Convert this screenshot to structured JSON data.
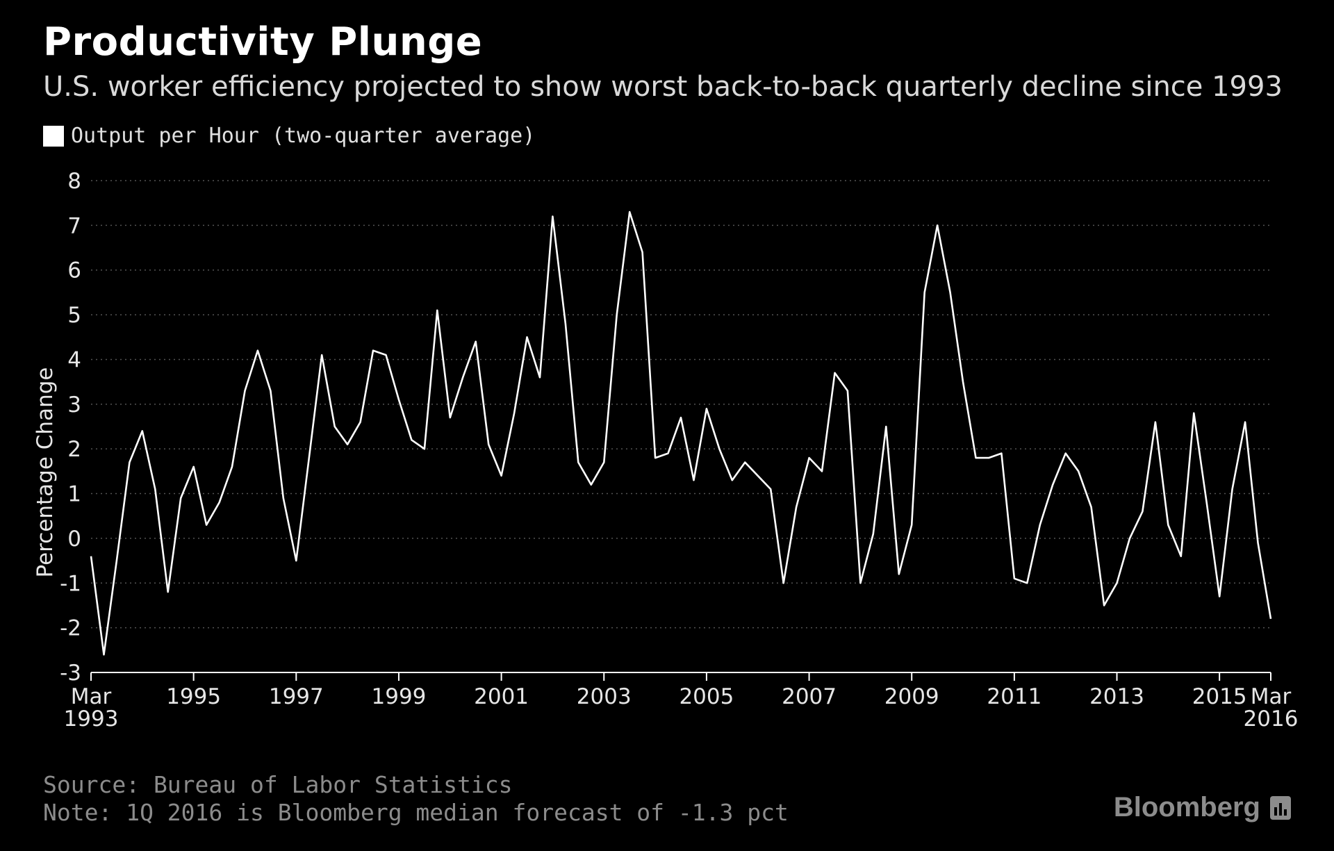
{
  "header": {
    "title": "Productivity Plunge",
    "subtitle": "U.S. worker efficiency projected to show worst back-to-back quarterly decline since 1993"
  },
  "legend": {
    "label": "Output per Hour (two-quarter average)",
    "color": "#ffffff"
  },
  "footer": {
    "source": "Source: Bureau of Labor Statistics",
    "note": "Note: 1Q 2016 is Bloomberg median forecast of -1.3 pct",
    "brand": "Bloomberg",
    "brand_icon": "bar-chart-icon"
  },
  "chart_data": {
    "type": "line",
    "title": "Productivity Plunge",
    "ylabel": "Percentage Change",
    "xlabel": "",
    "ylim": [
      -3,
      8
    ],
    "yticks": [
      8,
      7,
      6,
      5,
      4,
      3,
      2,
      1,
      0,
      -1,
      -2,
      -3
    ],
    "xlim": [
      "1993Q1",
      "2016Q1"
    ],
    "xticks": [
      {
        "at": "1993Q1",
        "line1": "Mar",
        "line2": "1993"
      },
      {
        "at": "1995Q1",
        "line1": "1995",
        "line2": ""
      },
      {
        "at": "1997Q1",
        "line1": "1997",
        "line2": ""
      },
      {
        "at": "1999Q1",
        "line1": "1999",
        "line2": ""
      },
      {
        "at": "2001Q1",
        "line1": "2001",
        "line2": ""
      },
      {
        "at": "2003Q1",
        "line1": "2003",
        "line2": ""
      },
      {
        "at": "2005Q1",
        "line1": "2005",
        "line2": ""
      },
      {
        "at": "2007Q1",
        "line1": "2007",
        "line2": ""
      },
      {
        "at": "2009Q1",
        "line1": "2009",
        "line2": ""
      },
      {
        "at": "2011Q1",
        "line1": "2011",
        "line2": ""
      },
      {
        "at": "2013Q1",
        "line1": "2013",
        "line2": ""
      },
      {
        "at": "2015Q1",
        "line1": "2015",
        "line2": ""
      },
      {
        "at": "2016Q1",
        "line1": "Mar",
        "line2": "2016"
      }
    ],
    "grid": true,
    "line_color": "#ffffff",
    "series": [
      {
        "name": "Output per Hour (two-quarter average)",
        "start": "1993Q1",
        "frequency": "quarterly",
        "values": [
          -0.4,
          -2.6,
          -0.5,
          1.7,
          2.4,
          1.1,
          -1.2,
          0.9,
          1.6,
          0.3,
          0.8,
          1.6,
          3.3,
          4.2,
          3.3,
          0.9,
          -0.5,
          1.8,
          4.1,
          2.5,
          2.1,
          2.6,
          4.2,
          4.1,
          3.1,
          2.2,
          2.0,
          5.1,
          2.7,
          3.6,
          4.4,
          2.1,
          1.4,
          2.8,
          4.5,
          3.6,
          7.2,
          4.8,
          1.7,
          1.2,
          1.7,
          5.0,
          7.3,
          6.4,
          1.8,
          1.9,
          2.7,
          1.3,
          2.9,
          2.0,
          1.3,
          1.7,
          1.4,
          1.1,
          -1.0,
          0.7,
          1.8,
          1.5,
          3.7,
          3.3,
          -1.0,
          0.1,
          2.5,
          -0.8,
          0.3,
          5.5,
          7.0,
          5.5,
          3.5,
          1.8,
          1.8,
          1.9,
          -0.9,
          -1.0,
          0.3,
          1.2,
          1.9,
          1.5,
          0.7,
          -1.5,
          -1.0,
          0.0,
          0.6,
          2.6,
          0.3,
          -0.4,
          2.8,
          0.8,
          -1.3,
          1.1,
          2.6,
          -0.1,
          -1.8
        ]
      }
    ]
  }
}
